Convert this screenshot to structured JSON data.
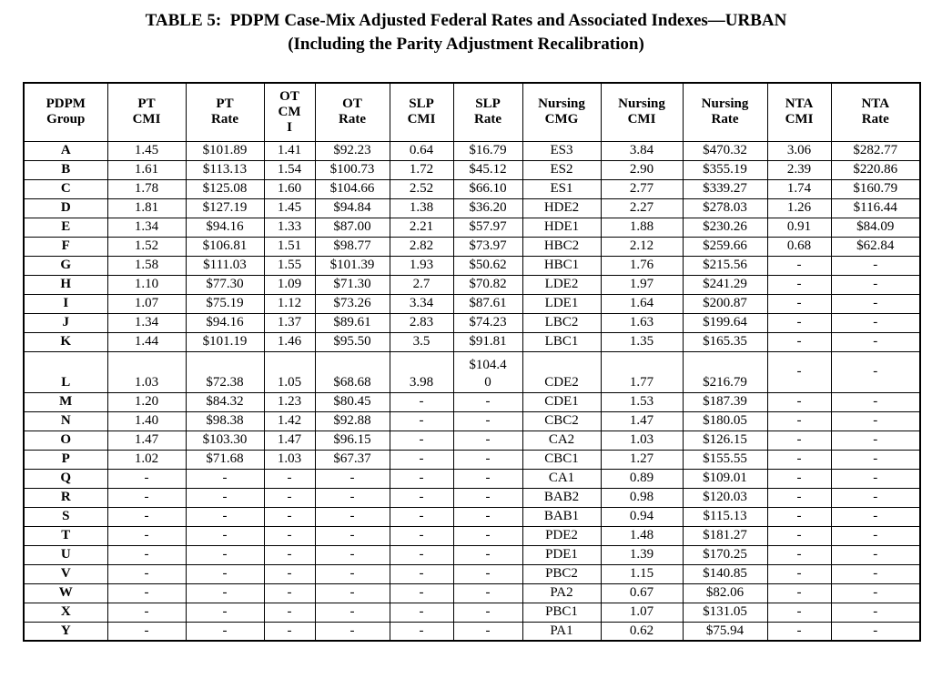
{
  "title": {
    "line1": "TABLE 5:  PDPM Case-Mix Adjusted Federal Rates and Associated Indexes—URBAN",
    "line2": "(Including the Parity Adjustment Recalibration)"
  },
  "table": {
    "columns": [
      "PDPM\nGroup",
      "PT\nCMI",
      "PT\nRate",
      "OT\nCM\nI",
      "OT\nRate",
      "SLP\nCMI",
      "SLP\nRate",
      "Nursing\nCMG",
      "Nursing\nCMI",
      "Nursing\nRate",
      "NTA\nCMI",
      "NTA\nRate"
    ],
    "rows": [
      [
        "A",
        "1.45",
        "$101.89",
        "1.41",
        "$92.23",
        "0.64",
        "$16.79",
        "ES3",
        "3.84",
        "$470.32",
        "3.06",
        "$282.77"
      ],
      [
        "B",
        "1.61",
        "$113.13",
        "1.54",
        "$100.73",
        "1.72",
        "$45.12",
        "ES2",
        "2.90",
        "$355.19",
        "2.39",
        "$220.86"
      ],
      [
        "C",
        "1.78",
        "$125.08",
        "1.60",
        "$104.66",
        "2.52",
        "$66.10",
        "ES1",
        "2.77",
        "$339.27",
        "1.74",
        "$160.79"
      ],
      [
        "D",
        "1.81",
        "$127.19",
        "1.45",
        "$94.84",
        "1.38",
        "$36.20",
        "HDE2",
        "2.27",
        "$278.03",
        "1.26",
        "$116.44"
      ],
      [
        "E",
        "1.34",
        "$94.16",
        "1.33",
        "$87.00",
        "2.21",
        "$57.97",
        "HDE1",
        "1.88",
        "$230.26",
        "0.91",
        "$84.09"
      ],
      [
        "F",
        "1.52",
        "$106.81",
        "1.51",
        "$98.77",
        "2.82",
        "$73.97",
        "HBC2",
        "2.12",
        "$259.66",
        "0.68",
        "$62.84"
      ],
      [
        "G",
        "1.58",
        "$111.03",
        "1.55",
        "$101.39",
        "1.93",
        "$50.62",
        "HBC1",
        "1.76",
        "$215.56",
        "-",
        "-"
      ],
      [
        "H",
        "1.10",
        "$77.30",
        "1.09",
        "$71.30",
        "2.7",
        "$70.82",
        "LDE2",
        "1.97",
        "$241.29",
        "-",
        "-"
      ],
      [
        "I",
        "1.07",
        "$75.19",
        "1.12",
        "$73.26",
        "3.34",
        "$87.61",
        "LDE1",
        "1.64",
        "$200.87",
        "-",
        "-"
      ],
      [
        "J",
        "1.34",
        "$94.16",
        "1.37",
        "$89.61",
        "2.83",
        "$74.23",
        "LBC2",
        "1.63",
        "$199.64",
        "-",
        "-"
      ],
      [
        "K",
        "1.44",
        "$101.19",
        "1.46",
        "$95.50",
        "3.5",
        "$91.81",
        "LBC1",
        "1.35",
        "$165.35",
        "-",
        "-"
      ],
      [
        "L",
        "1.03",
        "$72.38",
        "1.05",
        "$68.68",
        "3.98",
        "$104.4\n0",
        "CDE2",
        "1.77",
        "$216.79",
        "-",
        "-"
      ],
      [
        "M",
        "1.20",
        "$84.32",
        "1.23",
        "$80.45",
        "-",
        "-",
        "CDE1",
        "1.53",
        "$187.39",
        "-",
        "-"
      ],
      [
        "N",
        "1.40",
        "$98.38",
        "1.42",
        "$92.88",
        "-",
        "-",
        "CBC2",
        "1.47",
        "$180.05",
        "-",
        "-"
      ],
      [
        "O",
        "1.47",
        "$103.30",
        "1.47",
        "$96.15",
        "-",
        "-",
        "CA2",
        "1.03",
        "$126.15",
        "-",
        "-"
      ],
      [
        "P",
        "1.02",
        "$71.68",
        "1.03",
        "$67.37",
        "-",
        "-",
        "CBC1",
        "1.27",
        "$155.55",
        "-",
        "-"
      ],
      [
        "Q",
        "-",
        "-",
        "-",
        "-",
        "-",
        "-",
        "CA1",
        "0.89",
        "$109.01",
        "-",
        "-"
      ],
      [
        "R",
        "-",
        "-",
        "-",
        "-",
        "-",
        "-",
        "BAB2",
        "0.98",
        "$120.03",
        "-",
        "-"
      ],
      [
        "S",
        "-",
        "-",
        "-",
        "-",
        "-",
        "-",
        "BAB1",
        "0.94",
        "$115.13",
        "-",
        "-"
      ],
      [
        "T",
        "-",
        "-",
        "-",
        "-",
        "-",
        "-",
        "PDE2",
        "1.48",
        "$181.27",
        "-",
        "-"
      ],
      [
        "U",
        "-",
        "-",
        "-",
        "-",
        "-",
        "-",
        "PDE1",
        "1.39",
        "$170.25",
        "-",
        "-"
      ],
      [
        "V",
        "-",
        "-",
        "-",
        "-",
        "-",
        "-",
        "PBC2",
        "1.15",
        "$140.85",
        "-",
        "-"
      ],
      [
        "W",
        "-",
        "-",
        "-",
        "-",
        "-",
        "-",
        "PA2",
        "0.67",
        "$82.06",
        "-",
        "-"
      ],
      [
        "X",
        "-",
        "-",
        "-",
        "-",
        "-",
        "-",
        "PBC1",
        "1.07",
        "$131.05",
        "-",
        "-"
      ],
      [
        "Y",
        "-",
        "-",
        "-",
        "-",
        "-",
        "-",
        "PA1",
        "0.62",
        "$75.94",
        "-",
        "-"
      ]
    ]
  }
}
